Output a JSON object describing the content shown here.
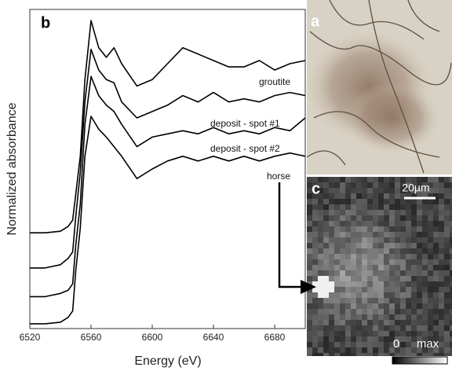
{
  "chart_data": {
    "type": "line",
    "panel_label": "b",
    "x_label": "Energy (eV)",
    "y_label": "Normalized absorbance",
    "x": [
      6520,
      6530,
      6540,
      6545,
      6548,
      6550,
      6553,
      6556,
      6560,
      6565,
      6570,
      6575,
      6580,
      6590,
      6600,
      6610,
      6620,
      6630,
      6640,
      6650,
      6660,
      6670,
      6680,
      6690,
      6700
    ],
    "xlim": [
      6520,
      6700
    ],
    "xticks": [
      6520,
      6560,
      6600,
      6640,
      6680
    ],
    "ylim": [
      0,
      10
    ],
    "series": [
      {
        "name": "groutite",
        "color": "#000000",
        "values": [
          3.0,
          3.0,
          3.05,
          3.2,
          3.4,
          4.2,
          5.4,
          7.8,
          9.65,
          8.8,
          8.5,
          8.8,
          8.3,
          7.6,
          7.8,
          8.3,
          8.8,
          8.6,
          8.4,
          8.2,
          8.2,
          8.4,
          8.1,
          8.3,
          8.4
        ]
      },
      {
        "name": "deposit - spot #1",
        "color": "#000000",
        "values": [
          1.9,
          1.9,
          2.0,
          2.2,
          2.4,
          3.5,
          4.9,
          7.1,
          8.75,
          8.1,
          7.8,
          7.7,
          7.1,
          6.6,
          6.8,
          7.0,
          7.3,
          7.1,
          7.4,
          7.1,
          7.2,
          7.1,
          7.3,
          7.4,
          7.3
        ]
      },
      {
        "name": "deposit - spot #2",
        "color": "#000000",
        "values": [
          1.0,
          1.0,
          1.1,
          1.2,
          1.4,
          2.6,
          3.9,
          6.4,
          7.9,
          7.3,
          7.0,
          6.8,
          6.4,
          5.7,
          6.0,
          6.1,
          6.2,
          6.1,
          6.3,
          6.1,
          6.2,
          6.1,
          6.3,
          6.2,
          6.6
        ]
      },
      {
        "name": "horse",
        "color": "#000000",
        "values": [
          0.15,
          0.15,
          0.2,
          0.35,
          0.55,
          1.8,
          3.15,
          5.4,
          6.65,
          6.25,
          6.0,
          5.7,
          5.4,
          4.7,
          5.0,
          5.25,
          5.4,
          5.25,
          5.4,
          5.25,
          5.4,
          5.25,
          5.4,
          5.5,
          5.4
        ]
      }
    ]
  },
  "panels": [
    {
      "label": "a"
    },
    {
      "label": "c",
      "scale_bar": "20µm",
      "colorbar_min": "0",
      "colorbar_max": "max"
    }
  ]
}
